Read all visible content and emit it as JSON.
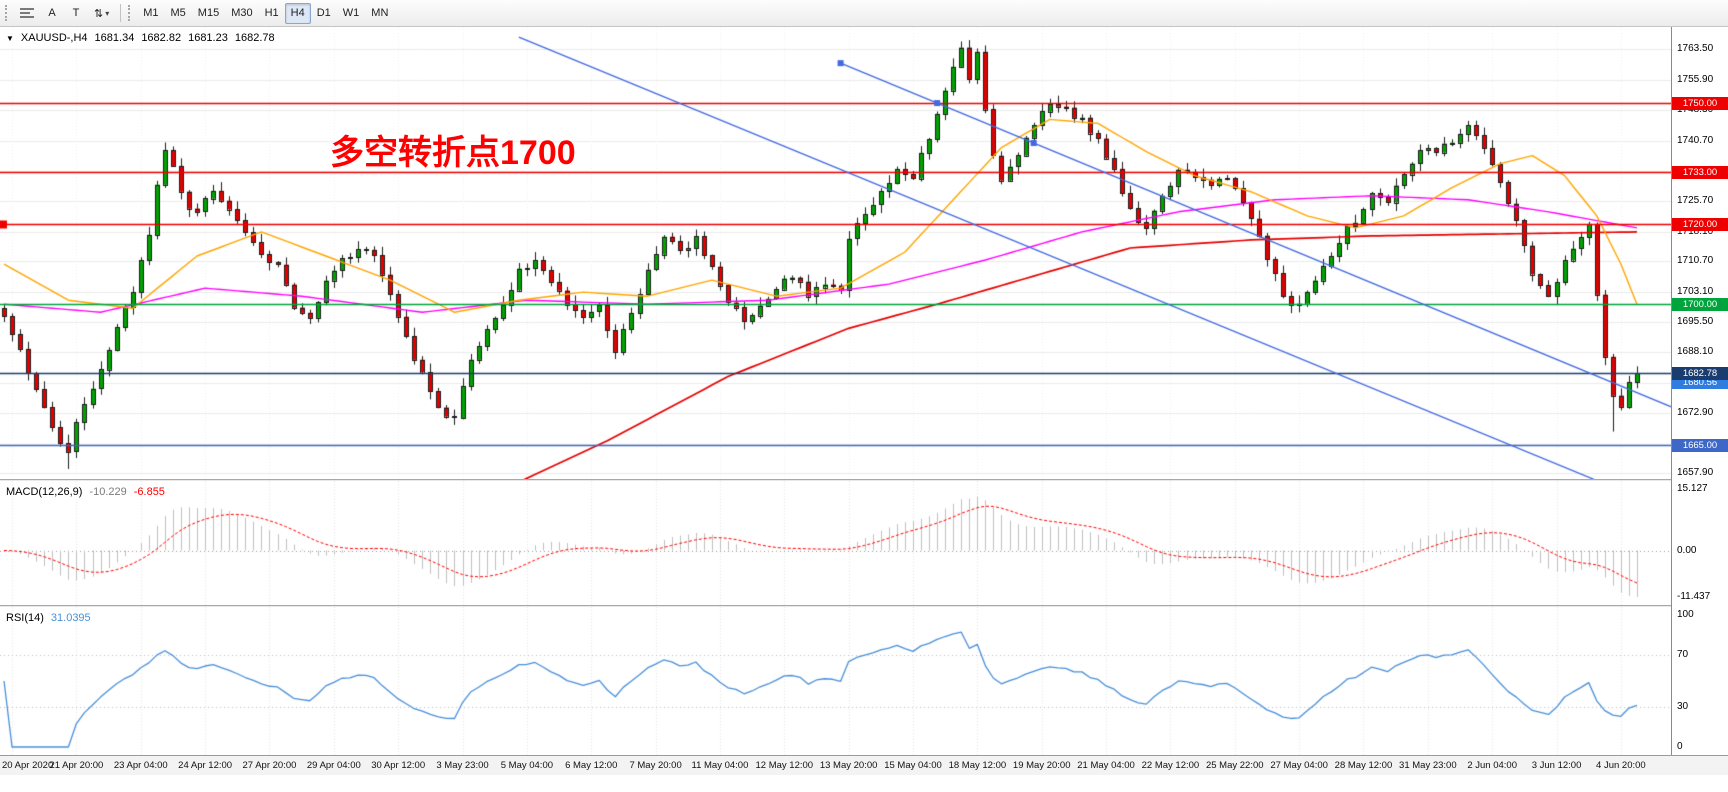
{
  "toolbar": {
    "drawing_tools": [
      {
        "id": "fibonacci",
        "glyph": ""
      },
      {
        "id": "text",
        "glyph": "A"
      },
      {
        "id": "text-label",
        "glyph": "T"
      },
      {
        "id": "arrows",
        "glyph": "⇅",
        "has_dropdown": true
      }
    ],
    "timeframes": [
      {
        "label": "M1"
      },
      {
        "label": "M5"
      },
      {
        "label": "M15"
      },
      {
        "label": "M30"
      },
      {
        "label": "H1"
      },
      {
        "label": "H4",
        "active": true
      },
      {
        "label": "D1"
      },
      {
        "label": "W1"
      },
      {
        "label": "MN"
      }
    ]
  },
  "chart": {
    "symbol_period": "XAUUSD-,H4",
    "open": "1681.34",
    "high": "1682.82",
    "low": "1681.23",
    "close": "1682.78",
    "annotation": {
      "text": "多空转折点1700",
      "color": "#ff0000"
    }
  },
  "indicators": {
    "macd": {
      "name": "MACD(12,26,9)",
      "value_main": "-10.229",
      "value_signal": "-6.855",
      "axis_labels": [
        "15.127",
        "0.00",
        "-11.437"
      ],
      "histogram_color": "#c0c0c0",
      "signal_color": "#ff0000"
    },
    "rsi": {
      "name": "RSI(14)",
      "value": "31.0395",
      "axis_labels": [
        "100",
        "70",
        "30",
        "0"
      ],
      "levels": [
        70,
        30
      ],
      "line_color": "#4a90d9"
    }
  },
  "chart_data": {
    "type": "candlestick",
    "symbol": "XAUUSD",
    "timeframe": "H4",
    "bars": 204,
    "last_close": 1682.78,
    "price_min": 1656.5,
    "price_max": 1769.0,
    "bull_color": "#00a400",
    "bear_color": "#e60000",
    "outline_color": "#1d1d1d",
    "y_ticks": [
      1763.5,
      1755.9,
      1748.3,
      1740.7,
      1733.1,
      1725.7,
      1718.1,
      1710.7,
      1703.1,
      1695.5,
      1688.1,
      1680.5,
      1672.9,
      1665.3,
      1657.9
    ],
    "close_waypoints": [
      [
        0,
        1697
      ],
      [
        2,
        1689
      ],
      [
        4,
        1678
      ],
      [
        6,
        1669
      ],
      [
        8,
        1663
      ],
      [
        10,
        1676
      ],
      [
        12,
        1684
      ],
      [
        14,
        1694
      ],
      [
        16,
        1703
      ],
      [
        18,
        1717
      ],
      [
        19,
        1730
      ],
      [
        20,
        1738
      ],
      [
        21,
        1735
      ],
      [
        22,
        1727
      ],
      [
        24,
        1722
      ],
      [
        26,
        1729
      ],
      [
        28,
        1724
      ],
      [
        30,
        1717
      ],
      [
        32,
        1713
      ],
      [
        34,
        1709
      ],
      [
        36,
        1700
      ],
      [
        38,
        1697
      ],
      [
        40,
        1706
      ],
      [
        42,
        1711
      ],
      [
        44,
        1714
      ],
      [
        46,
        1712
      ],
      [
        48,
        1703
      ],
      [
        50,
        1691
      ],
      [
        52,
        1683
      ],
      [
        54,
        1674
      ],
      [
        56,
        1671
      ],
      [
        58,
        1687
      ],
      [
        60,
        1694
      ],
      [
        62,
        1700
      ],
      [
        64,
        1708
      ],
      [
        66,
        1712
      ],
      [
        68,
        1706
      ],
      [
        70,
        1699
      ],
      [
        72,
        1697
      ],
      [
        74,
        1700
      ],
      [
        76,
        1689
      ],
      [
        78,
        1698
      ],
      [
        80,
        1708
      ],
      [
        82,
        1716
      ],
      [
        84,
        1714
      ],
      [
        86,
        1716
      ],
      [
        88,
        1709
      ],
      [
        90,
        1701
      ],
      [
        92,
        1696
      ],
      [
        94,
        1700
      ],
      [
        96,
        1704
      ],
      [
        98,
        1707
      ],
      [
        100,
        1703
      ],
      [
        102,
        1706
      ],
      [
        104,
        1704
      ],
      [
        105,
        1717
      ],
      [
        107,
        1722
      ],
      [
        109,
        1728
      ],
      [
        111,
        1734
      ],
      [
        113,
        1732
      ],
      [
        115,
        1742
      ],
      [
        117,
        1753
      ],
      [
        118,
        1760
      ],
      [
        119,
        1763
      ],
      [
        120,
        1757
      ],
      [
        121,
        1762
      ],
      [
        122,
        1748
      ],
      [
        123,
        1737
      ],
      [
        124,
        1731
      ],
      [
        126,
        1738
      ],
      [
        128,
        1745
      ],
      [
        130,
        1750
      ],
      [
        132,
        1748
      ],
      [
        134,
        1746
      ],
      [
        136,
        1741
      ],
      [
        138,
        1733
      ],
      [
        140,
        1723
      ],
      [
        142,
        1719
      ],
      [
        144,
        1727
      ],
      [
        146,
        1733
      ],
      [
        148,
        1731
      ],
      [
        150,
        1730
      ],
      [
        152,
        1732
      ],
      [
        154,
        1726
      ],
      [
        156,
        1716
      ],
      [
        158,
        1707
      ],
      [
        160,
        1699
      ],
      [
        162,
        1703
      ],
      [
        164,
        1709
      ],
      [
        166,
        1716
      ],
      [
        168,
        1721
      ],
      [
        170,
        1727
      ],
      [
        172,
        1725
      ],
      [
        174,
        1733
      ],
      [
        176,
        1739
      ],
      [
        178,
        1737
      ],
      [
        180,
        1741
      ],
      [
        182,
        1744
      ],
      [
        184,
        1738
      ],
      [
        186,
        1730
      ],
      [
        188,
        1721
      ],
      [
        190,
        1707
      ],
      [
        192,
        1701
      ],
      [
        194,
        1710
      ],
      [
        196,
        1717
      ],
      [
        197,
        1720
      ],
      [
        198,
        1703
      ],
      [
        199,
        1688
      ],
      [
        200,
        1677
      ],
      [
        201,
        1675
      ],
      [
        202,
        1681
      ],
      [
        203,
        1682.78
      ]
    ],
    "wick_overrides": [
      [
        8,
        "low",
        1659.0
      ],
      [
        119,
        "high",
        1765.4
      ],
      [
        200,
        "low",
        1668.3
      ]
    ],
    "horizontal_lines": [
      {
        "price": 1750.0,
        "label": "1750.00",
        "color": "#ee0000"
      },
      {
        "price": 1733.0,
        "label": "1733.00",
        "color": "#ee0000"
      },
      {
        "price": 1720.0,
        "label": "1720.00",
        "color": "#ee0000",
        "left_anchor": true
      },
      {
        "price": 1700.0,
        "label": "1700.00",
        "color": "#00a43c"
      },
      {
        "price": 1665.0,
        "label": "1665.00",
        "color": "#3d68c8"
      },
      {
        "price": 1680.56,
        "label": "1680.56",
        "color": "#2f7de0",
        "no_line": true
      },
      {
        "price": 1682.78,
        "label": "1682.78",
        "color": "#1b3c6e"
      }
    ],
    "trendlines": [
      {
        "from_bar": 64,
        "from_price": 1766.5,
        "to_bar": 186,
        "to_price": 1666.0,
        "color": "#4169e1"
      },
      {
        "from_bar": 104,
        "from_price": 1760.0,
        "to_bar": 203,
        "to_price": 1678.0,
        "color": "#4169e1",
        "handles": [
          104,
          116,
          128
        ]
      }
    ],
    "moving_averages": [
      {
        "id": "ma-slow",
        "color": "#e60000",
        "width": 1.7,
        "waypoints": [
          [
            60,
            1652
          ],
          [
            75,
            1666
          ],
          [
            90,
            1682
          ],
          [
            105,
            1694
          ],
          [
            116,
            1700
          ],
          [
            128,
            1707
          ],
          [
            140,
            1714
          ],
          [
            155,
            1716
          ],
          [
            170,
            1717
          ],
          [
            203,
            1718
          ]
        ]
      },
      {
        "id": "ma-mid",
        "color": "#ff00ff",
        "width": 1.4,
        "waypoints": [
          [
            0,
            1700
          ],
          [
            12,
            1698
          ],
          [
            25,
            1704
          ],
          [
            37,
            1702
          ],
          [
            52,
            1698
          ],
          [
            65,
            1701
          ],
          [
            80,
            1700
          ],
          [
            95,
            1701
          ],
          [
            110,
            1705
          ],
          [
            122,
            1711
          ],
          [
            134,
            1718
          ],
          [
            146,
            1723
          ],
          [
            158,
            1726
          ],
          [
            170,
            1727
          ],
          [
            182,
            1726
          ],
          [
            192,
            1723
          ],
          [
            203,
            1719
          ]
        ]
      },
      {
        "id": "ma-fast",
        "color": "#ffa500",
        "width": 1.4,
        "waypoints": [
          [
            0,
            1710
          ],
          [
            8,
            1701
          ],
          [
            16,
            1699
          ],
          [
            24,
            1712
          ],
          [
            32,
            1718
          ],
          [
            40,
            1712
          ],
          [
            48,
            1706
          ],
          [
            56,
            1698
          ],
          [
            64,
            1701
          ],
          [
            72,
            1703
          ],
          [
            80,
            1702
          ],
          [
            88,
            1706
          ],
          [
            96,
            1702
          ],
          [
            104,
            1704
          ],
          [
            112,
            1713
          ],
          [
            118,
            1726
          ],
          [
            124,
            1739
          ],
          [
            130,
            1746
          ],
          [
            136,
            1745
          ],
          [
            142,
            1738
          ],
          [
            148,
            1732
          ],
          [
            155,
            1728
          ],
          [
            162,
            1722
          ],
          [
            168,
            1719
          ],
          [
            174,
            1722
          ],
          [
            180,
            1729
          ],
          [
            186,
            1735
          ],
          [
            190,
            1737
          ],
          [
            194,
            1732
          ],
          [
            198,
            1722
          ],
          [
            201,
            1710
          ],
          [
            203,
            1700
          ]
        ]
      }
    ],
    "time_labels": [
      "20 Apr 2020",
      "21 Apr 20:00",
      "23 Apr 04:00",
      "24 Apr 12:00",
      "27 Apr 20:00",
      "29 Apr 04:00",
      "30 Apr 12:00",
      "3 May 23:00",
      "5 May 04:00",
      "6 May 12:00",
      "7 May 20:00",
      "11 May 04:00",
      "12 May 12:00",
      "13 May 20:00",
      "15 May 04:00",
      "18 May 12:00",
      "19 May 20:00",
      "21 May 04:00",
      "22 May 12:00",
      "25 May 22:00",
      "27 May 04:00",
      "28 May 12:00",
      "31 May 23:00",
      "2 Jun 04:00",
      "3 Jun 12:00",
      "4 Jun 20:00"
    ]
  }
}
